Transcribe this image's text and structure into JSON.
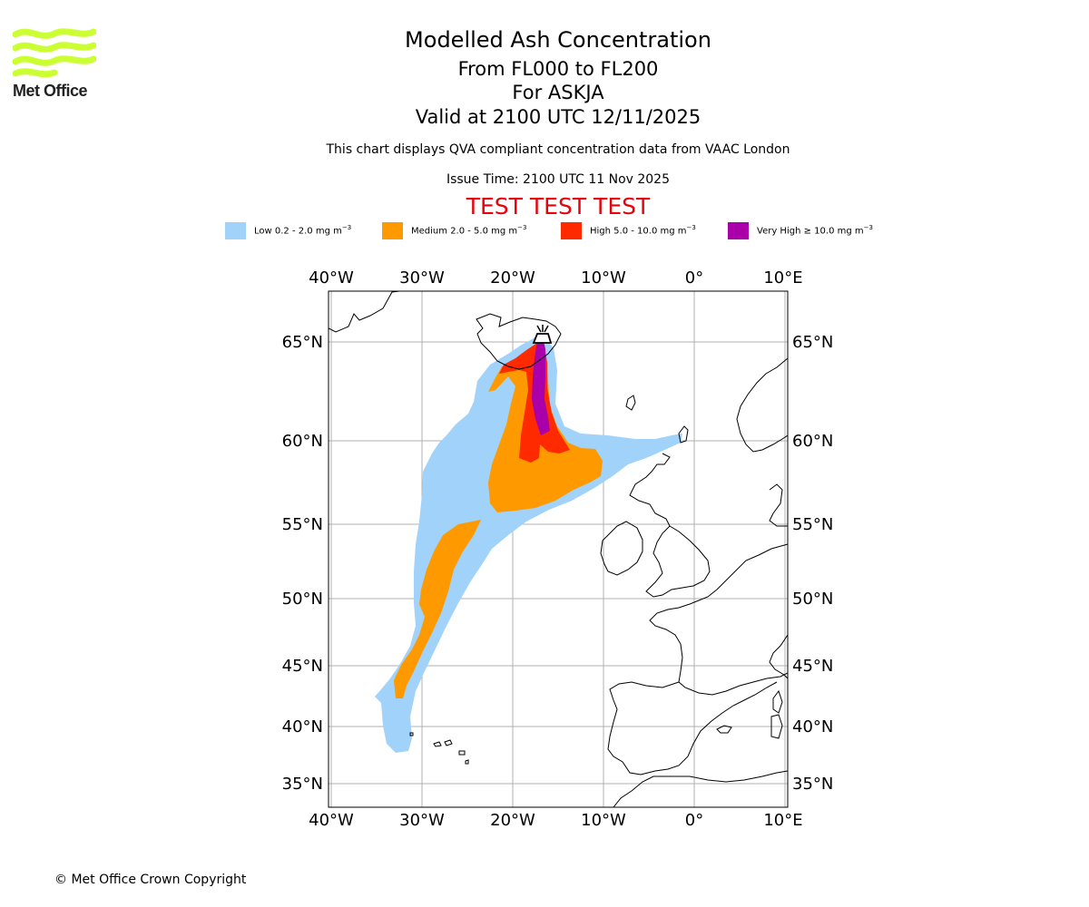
{
  "brand": {
    "name": "Met Office",
    "logo_color": "#ccff33"
  },
  "header": {
    "title": "Modelled Ash Concentration",
    "levels": "From FL000 to FL200",
    "volcano": "For ASKJA",
    "valid": "Valid at 2100 UTC 12/11/2025",
    "description": "This chart displays QVA compliant concentration data from VAAC London",
    "issue_time": "Issue Time: 2100 UTC 11 Nov 2025",
    "test_banner": "TEST TEST TEST"
  },
  "legend": [
    {
      "level": "Low",
      "range": "0.2 - 2.0",
      "unit": "mg m",
      "exp": "−3",
      "color": "#a0d2fa"
    },
    {
      "level": "Medium",
      "range": "2.0 - 5.0",
      "unit": "mg m",
      "exp": "−3",
      "color": "#ff9900"
    },
    {
      "level": "High",
      "range": "5.0 - 10.0",
      "unit": "mg m",
      "exp": "−3",
      "color": "#ff2a00"
    },
    {
      "level": "Very High",
      "range": "≥  10.0",
      "unit": "mg m",
      "exp": "−3",
      "color": "#aa00aa"
    }
  ],
  "map": {
    "lon_labels": [
      "40°W",
      "30°W",
      "20°W",
      "10°W",
      "0°",
      "10°E"
    ],
    "lat_labels": [
      "65°N",
      "60°N",
      "55°N",
      "50°N",
      "45°N",
      "40°N",
      "35°N"
    ],
    "volcano_icon": "volcano-icon"
  },
  "footer": {
    "copyright": "© Met Office Crown Copyright"
  }
}
